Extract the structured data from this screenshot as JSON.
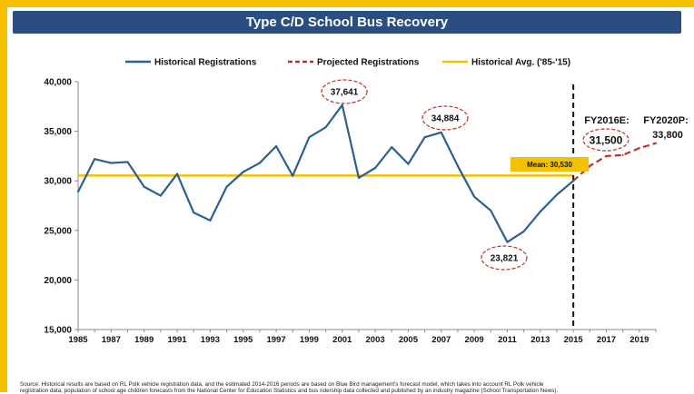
{
  "colors": {
    "frame": "#f5c000",
    "title_bg": "#2a4e7f",
    "historical": "#2c5f93",
    "projected": "#c0302a",
    "average": "#f5c000"
  },
  "chart_data": {
    "type": "line",
    "title": "Type C/D School Bus Recovery",
    "x": [
      1985,
      1986,
      1987,
      1988,
      1989,
      1990,
      1991,
      1992,
      1993,
      1994,
      1995,
      1996,
      1997,
      1998,
      1999,
      2000,
      2001,
      2002,
      2003,
      2004,
      2005,
      2006,
      2007,
      2008,
      2009,
      2010,
      2011,
      2012,
      2013,
      2014,
      2015,
      2016,
      2017,
      2018,
      2019,
      2020
    ],
    "xlim": [
      1985,
      2020
    ],
    "ylim": [
      15000,
      40000
    ],
    "y_ticks": [
      15000,
      20000,
      25000,
      30000,
      35000,
      40000
    ],
    "y_tick_labels": [
      "15,000",
      "20,000",
      "25,000",
      "30,000",
      "35,000",
      "40,000"
    ],
    "x_ticks": [
      1985,
      1987,
      1989,
      1991,
      1993,
      1995,
      1997,
      1999,
      2001,
      2003,
      2005,
      2007,
      2009,
      2011,
      2013,
      2015,
      2017,
      2019
    ],
    "x_tick_labels": [
      "1985",
      "1987",
      "1989",
      "1991",
      "1993",
      "1995",
      "1997",
      "1999",
      "2001",
      "2003",
      "2005",
      "2007",
      "2009",
      "2011",
      "2013",
      "2015",
      "2017",
      "2019"
    ],
    "legend_position": "top",
    "grid": false,
    "series": [
      {
        "name": "Historical Registrations",
        "style": "solid",
        "x": [
          1985,
          1986,
          1987,
          1988,
          1989,
          1990,
          1991,
          1992,
          1993,
          1994,
          1995,
          1996,
          1997,
          1998,
          1999,
          2000,
          2001,
          2002,
          2003,
          2004,
          2005,
          2006,
          2007,
          2008,
          2009,
          2010,
          2011,
          2012,
          2013,
          2014,
          2015
        ],
        "values": [
          28900,
          32200,
          31800,
          31900,
          29400,
          28500,
          30700,
          26800,
          26000,
          29400,
          30900,
          31800,
          33500,
          30500,
          34400,
          35400,
          37641,
          30300,
          31300,
          33400,
          31700,
          34400,
          34884,
          31500,
          28400,
          27000,
          23821,
          24900,
          26900,
          28600,
          30000
        ]
      },
      {
        "name": "Projected Registrations",
        "style": "dashed",
        "x": [
          2015,
          2016,
          2017,
          2018,
          2019,
          2020
        ],
        "values": [
          30000,
          31500,
          32500,
          32600,
          33300,
          33800
        ]
      },
      {
        "name": "Historical Avg. ('85-'15)",
        "style": "solid",
        "x": [
          1985,
          2015
        ],
        "values": [
          30530,
          30530
        ]
      }
    ],
    "annotations": {
      "peak_2001": {
        "text": "37,641",
        "x": 2001,
        "y": 37641
      },
      "peak_2007": {
        "text": "34,884",
        "x": 2007,
        "y": 34884
      },
      "low_2011": {
        "text": "23,821",
        "x": 2011,
        "y": 23821
      },
      "fy2016_label": "FY2016E:",
      "fy2016_value": "31,500",
      "fy2020_label": "FY2020P:",
      "fy2020_value": "33,800",
      "mean_label": "Mean: 30,530",
      "divider_x": 2015
    },
    "source_text": [
      "Source: Historical results are based on RL Polk vehicle registration data, and the estimated 2014-2016 periods are based on Blue Bird management's forecast model, which takes into account RL Polk vehicle",
      "registration data, population of school age children forecasts from the National Center for Education Statistics and bus ridership data collected and published by an industry magazine (School Transportation News)."
    ]
  }
}
